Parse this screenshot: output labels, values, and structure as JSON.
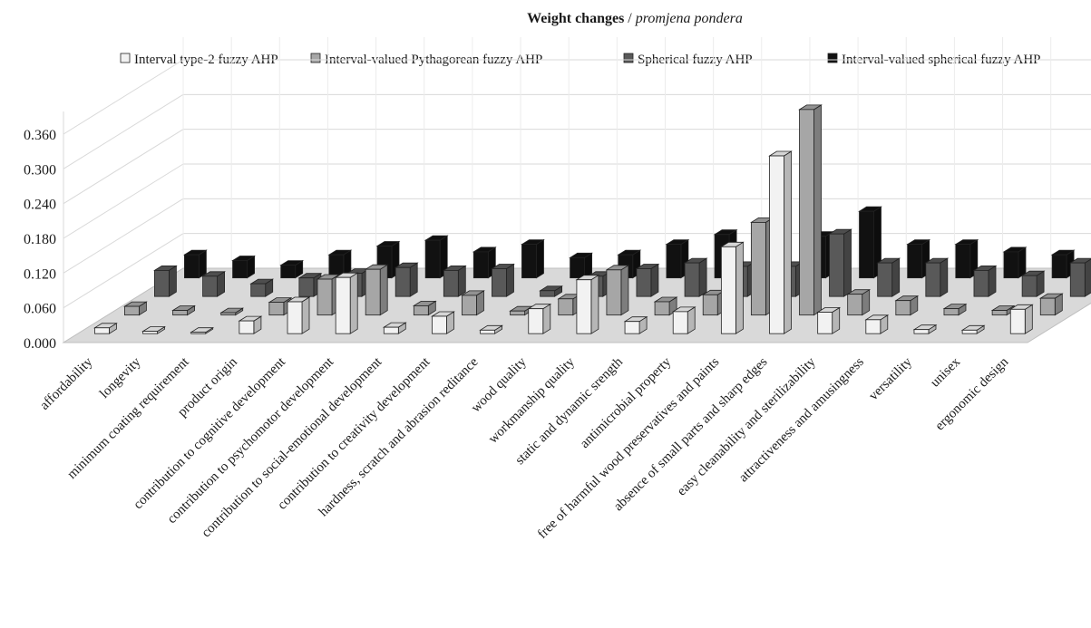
{
  "chart_data": {
    "type": "bar",
    "title": "Weight changes",
    "title_separator": " / ",
    "subtitle": "promjena pondera",
    "xlabel": "",
    "ylabel": "",
    "ylim": [
      0,
      0.36
    ],
    "yticks": [
      "0.000",
      "0.060",
      "0.120",
      "0.180",
      "0.240",
      "0.300",
      "0.360"
    ],
    "grid": true,
    "legend_position": "top",
    "categories": [
      "affordability",
      "longevity",
      "minimum coating requirement",
      "product origin",
      "contribution to cognitive development",
      "contribution to psychomotor development",
      "contribution to social-emotional development",
      "contribution to creativity development",
      "hardness, scratch and abrasion reditance",
      "wood quality",
      "workmanship quality",
      "static and dynamic srength",
      "antimicrobial property",
      "free of harmful wood preservatives and paints",
      "absence of small parts and sharp edges",
      "easy cleanability and sterilizability",
      "attractiveness and amusingness",
      "versatility",
      "unisex",
      "ergonomic design"
    ],
    "series": [
      {
        "name": "Interval type-2 fuzzy AHP",
        "color": "#f2f2f2",
        "values": [
          0.01,
          0.004,
          0.002,
          0.022,
          0.055,
          0.097,
          0.011,
          0.03,
          0.006,
          0.043,
          0.093,
          0.021,
          0.038,
          0.15,
          0.307,
          0.037,
          0.024,
          0.007,
          0.006,
          0.042
        ]
      },
      {
        "name": "Interval-valued Pythagorean fuzzy AHP",
        "color": "#a6a6a6",
        "values": [
          0.015,
          0.008,
          0.004,
          0.022,
          0.062,
          0.079,
          0.016,
          0.034,
          0.007,
          0.028,
          0.078,
          0.023,
          0.035,
          0.16,
          0.355,
          0.036,
          0.025,
          0.011,
          0.008,
          0.029
        ]
      },
      {
        "name": "Spherical fuzzy AHP",
        "color": "#595959",
        "values": [
          0.045,
          0.035,
          0.022,
          0.032,
          0.04,
          0.05,
          0.045,
          0.048,
          0.01,
          0.035,
          0.048,
          0.058,
          0.052,
          0.052,
          0.108,
          0.058,
          0.058,
          0.045,
          0.036,
          0.058
        ]
      },
      {
        "name": "Interval-valued spherical fuzzy AHP",
        "color": "#111111",
        "values": [
          0.04,
          0.03,
          0.022,
          0.04,
          0.055,
          0.065,
          0.045,
          0.058,
          0.035,
          0.04,
          0.058,
          0.075,
          0.062,
          0.072,
          0.115,
          0.058,
          0.058,
          0.045,
          0.04,
          0.058
        ]
      }
    ]
  }
}
